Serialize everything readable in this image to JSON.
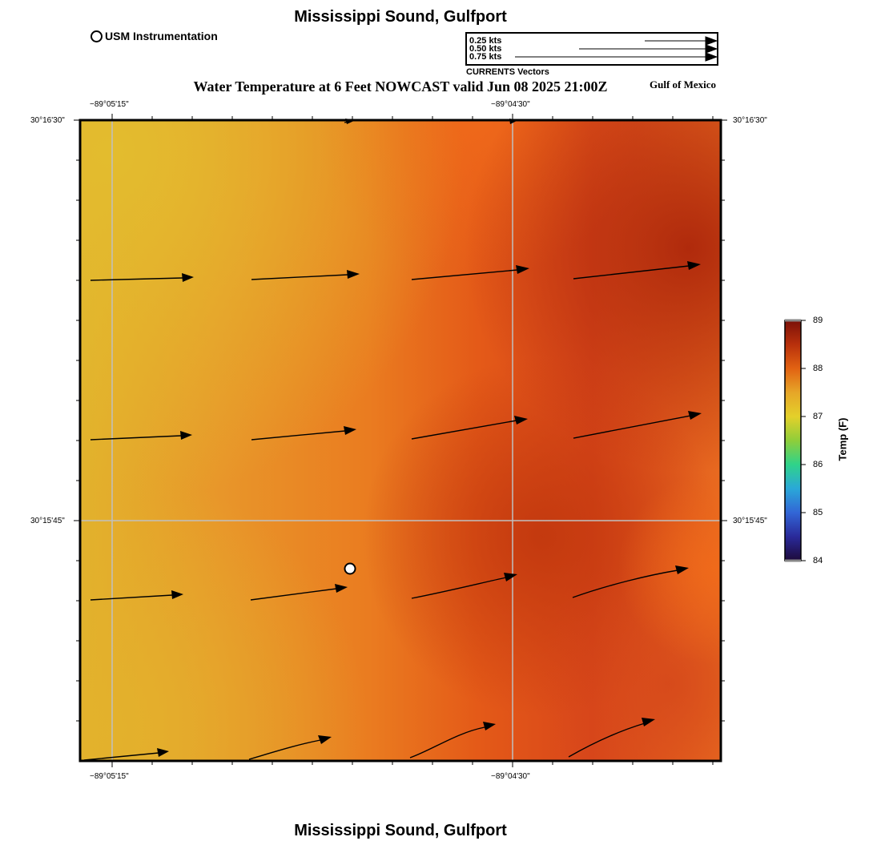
{
  "titles": {
    "top": "Mississippi Sound, Gulfport",
    "bottom": "Mississippi Sound, Gulfport",
    "subtitle": "Water Temperature at 6 Feet NOWCAST valid Jun 08 2025 21:00Z",
    "region": "Gulf of Mexico"
  },
  "instrument_legend": {
    "label": "USM Instrumentation",
    "icon": "open-circle-icon"
  },
  "vector_legend": {
    "caption": "CURRENTS Vectors",
    "entries": [
      {
        "label": "0.25 kts",
        "speed_kts": 0.25
      },
      {
        "label": "0.50 kts",
        "speed_kts": 0.5
      },
      {
        "label": "0.75 kts",
        "speed_kts": 0.75
      }
    ]
  },
  "axes": {
    "lon_ticks": [
      "−89°05'15\"",
      "−89°04'30\""
    ],
    "lat_ticks": [
      "30°16'30\"",
      "30°15'45\""
    ]
  },
  "colorbar": {
    "title": "Temp (F)",
    "min": 84,
    "max": 89,
    "ticks": [
      "89",
      "88",
      "87",
      "86",
      "85",
      "84"
    ],
    "colors": [
      "#7a1008",
      "#b8300c",
      "#e26212",
      "#e6a628",
      "#e4d02a",
      "#8fce3a",
      "#2fd38a",
      "#2aa8d8",
      "#3266d6",
      "#2a2a9a",
      "#1e0a3a"
    ]
  },
  "map": {
    "colors": {
      "yellow": "#e3b62c",
      "orange": "#ea7a1e",
      "deep_orange": "#e2541a",
      "red": "#b52e0e",
      "grid": "#bfbfbf"
    },
    "station_icon": "white-circle-marker-icon"
  }
}
